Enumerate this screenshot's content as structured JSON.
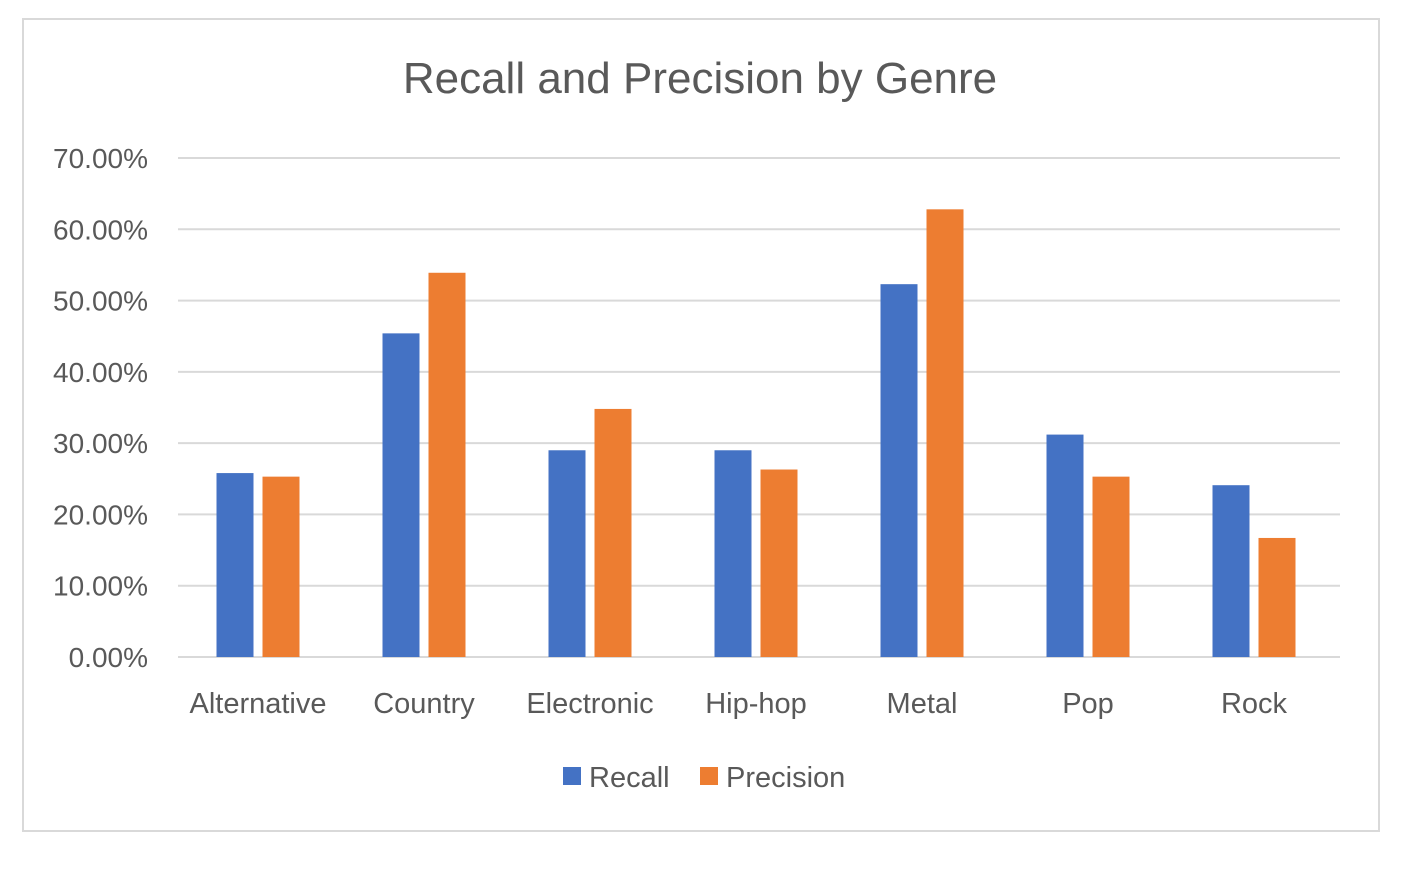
{
  "chart_data": {
    "type": "bar",
    "title": "Recall and Precision by Genre",
    "categories": [
      "Alternative",
      "Country",
      "Electronic",
      "Hip-hop",
      "Metal",
      "Pop",
      "Rock"
    ],
    "series": [
      {
        "name": "Recall",
        "color": "#4472c4",
        "values": [
          25.8,
          45.4,
          29.0,
          29.0,
          52.3,
          31.2,
          24.1
        ]
      },
      {
        "name": "Precision",
        "color": "#ed7d31",
        "values": [
          25.3,
          53.9,
          34.8,
          26.3,
          62.8,
          25.3,
          16.7
        ]
      }
    ],
    "ylim": [
      0,
      70
    ],
    "yticks": [
      "0.00%",
      "10.00%",
      "20.00%",
      "30.00%",
      "40.00%",
      "50.00%",
      "60.00%",
      "70.00%"
    ],
    "xlabel": "",
    "ylabel": "",
    "grid": true,
    "gridline_color": "#d9d9d9",
    "legend_position": "bottom"
  }
}
